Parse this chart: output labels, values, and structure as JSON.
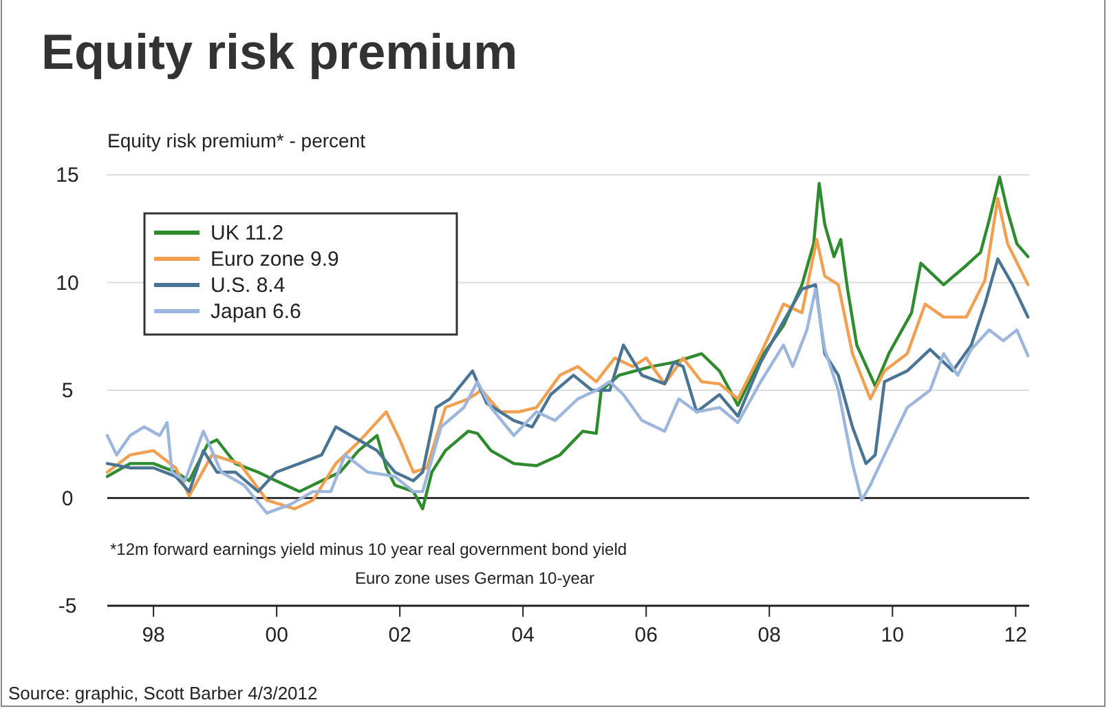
{
  "chart_data": {
    "type": "line",
    "title": "Equity risk premium",
    "ylabel": "Equity risk premium* - percent",
    "annotations": [
      "*12m forward earnings yield minus 10 year real government bond yield",
      "Euro zone uses German 10-year",
      "Source: graphic, Scott Barber 4/3/2012"
    ],
    "xlim": [
      1997.25,
      2012.22
    ],
    "ylim": [
      -5,
      15
    ],
    "xticks": [
      {
        "value": 1998,
        "label": "98"
      },
      {
        "value": 2000,
        "label": "00"
      },
      {
        "value": 2002,
        "label": "02"
      },
      {
        "value": 2004,
        "label": "04"
      },
      {
        "value": 2006,
        "label": "06"
      },
      {
        "value": 2008,
        "label": "08"
      },
      {
        "value": 2010,
        "label": "10"
      },
      {
        "value": 2012,
        "label": "12"
      }
    ],
    "yticks": [
      -5,
      0,
      5,
      10,
      15
    ],
    "grid": "y",
    "legend": "top left",
    "ref_lines": [
      {
        "axis": "y",
        "value": 0,
        "color": "#333333"
      }
    ],
    "series": [
      {
        "name": "UK 11.2",
        "color": "#2e8b2e",
        "x": [
          1997.25,
          1997.62,
          1998.0,
          1998.36,
          1998.58,
          1998.88,
          1999.03,
          1999.33,
          1999.7,
          1999.99,
          2000.37,
          2000.73,
          2001.03,
          2001.33,
          2001.63,
          2001.78,
          2001.92,
          2002.22,
          2002.37,
          2002.52,
          2002.74,
          2003.11,
          2003.26,
          2003.48,
          2003.85,
          2004.22,
          2004.6,
          2004.97,
          2005.19,
          2005.27,
          2005.56,
          2006.08,
          2006.45,
          2006.9,
          2007.19,
          2007.49,
          2007.86,
          2008.23,
          2008.53,
          2008.72,
          2008.81,
          2008.9,
          2009.05,
          2009.16,
          2009.27,
          2009.42,
          2009.72,
          2009.94,
          2010.31,
          2010.46,
          2010.83,
          2011.2,
          2011.43,
          2011.57,
          2011.74,
          2011.87,
          2012.02,
          2012.2
        ],
        "values": [
          1.0,
          1.6,
          1.6,
          1.2,
          0.8,
          2.5,
          2.7,
          1.6,
          1.2,
          0.8,
          0.3,
          0.8,
          1.2,
          2.2,
          2.9,
          1.4,
          0.6,
          0.3,
          -0.5,
          1.2,
          2.2,
          3.1,
          3.0,
          2.2,
          1.6,
          1.5,
          2.0,
          3.1,
          3.0,
          5.0,
          5.7,
          6.1,
          6.3,
          6.7,
          5.9,
          4.3,
          6.5,
          8.0,
          9.9,
          11.8,
          14.6,
          12.7,
          11.2,
          12.0,
          9.7,
          7.1,
          5.2,
          6.7,
          8.6,
          10.9,
          9.9,
          10.8,
          11.4,
          12.9,
          14.9,
          13.3,
          11.8,
          11.2
        ]
      },
      {
        "name": "Euro zone 9.9",
        "color": "#f0a050",
        "x": [
          1997.25,
          1997.62,
          1998.0,
          1998.36,
          1998.58,
          1998.95,
          1999.4,
          1999.84,
          2000.29,
          2000.59,
          2000.96,
          2001.33,
          2001.78,
          2002.0,
          2002.22,
          2002.44,
          2002.74,
          2003.11,
          2003.33,
          2003.63,
          2003.93,
          2004.22,
          2004.6,
          2004.89,
          2005.19,
          2005.49,
          2005.78,
          2006.0,
          2006.3,
          2006.6,
          2006.9,
          2007.19,
          2007.49,
          2007.86,
          2008.23,
          2008.53,
          2008.77,
          2008.9,
          2009.12,
          2009.35,
          2009.64,
          2009.87,
          2010.24,
          2010.53,
          2010.83,
          2011.2,
          2011.5,
          2011.71,
          2011.87,
          2012.2
        ],
        "values": [
          1.2,
          2.0,
          2.2,
          1.4,
          0.1,
          2.0,
          1.6,
          -0.1,
          -0.5,
          -0.1,
          1.6,
          2.6,
          4.0,
          2.7,
          1.2,
          1.4,
          4.2,
          4.6,
          5.0,
          4.0,
          4.0,
          4.2,
          5.7,
          6.1,
          5.4,
          6.5,
          6.1,
          6.5,
          5.3,
          6.5,
          5.4,
          5.3,
          4.6,
          6.7,
          9.0,
          8.6,
          12.0,
          10.3,
          9.9,
          6.7,
          4.6,
          5.9,
          6.7,
          9.0,
          8.4,
          8.4,
          10.1,
          13.9,
          11.8,
          9.9
        ]
      },
      {
        "name": "U.S. 8.4",
        "color": "#4a7494",
        "x": [
          1997.25,
          1997.62,
          1998.0,
          1998.36,
          1998.58,
          1998.81,
          1999.03,
          1999.33,
          1999.7,
          1999.99,
          2000.37,
          2000.73,
          2000.96,
          2001.33,
          2001.63,
          2001.92,
          2002.22,
          2002.37,
          2002.59,
          2002.81,
          2003.18,
          2003.41,
          2003.85,
          2004.15,
          2004.45,
          2004.82,
          2005.12,
          2005.41,
          2005.63,
          2005.93,
          2006.3,
          2006.45,
          2006.6,
          2006.82,
          2007.19,
          2007.49,
          2007.86,
          2008.23,
          2008.53,
          2008.75,
          2008.9,
          2009.12,
          2009.35,
          2009.57,
          2009.72,
          2009.87,
          2010.24,
          2010.61,
          2010.98,
          2011.28,
          2011.5,
          2011.71,
          2011.95,
          2012.2
        ],
        "values": [
          1.6,
          1.4,
          1.4,
          1.0,
          0.3,
          2.2,
          1.2,
          1.2,
          0.3,
          1.2,
          1.6,
          2.0,
          3.3,
          2.7,
          2.2,
          1.2,
          0.8,
          1.2,
          4.2,
          4.6,
          5.9,
          4.4,
          3.6,
          3.3,
          4.8,
          5.7,
          5.0,
          5.0,
          7.1,
          5.7,
          5.3,
          6.3,
          6.1,
          4.0,
          4.8,
          3.8,
          6.3,
          8.2,
          9.7,
          9.9,
          6.7,
          5.7,
          3.3,
          1.6,
          2.0,
          5.4,
          5.9,
          6.9,
          5.9,
          7.1,
          9.0,
          11.1,
          9.9,
          8.4
        ]
      },
      {
        "name": "Japan 6.6",
        "color": "#9db6de",
        "x": [
          1997.25,
          1997.4,
          1997.62,
          1997.85,
          1998.1,
          1998.22,
          1998.3,
          1998.51,
          1998.81,
          1999.1,
          1999.47,
          1999.84,
          2000.22,
          2000.59,
          2000.88,
          2001.11,
          2001.48,
          2001.92,
          2002.22,
          2002.37,
          2002.67,
          2003.04,
          2003.26,
          2003.48,
          2003.85,
          2004.22,
          2004.52,
          2004.89,
          2005.19,
          2005.41,
          2005.63,
          2005.93,
          2006.3,
          2006.53,
          2006.82,
          2007.19,
          2007.49,
          2007.86,
          2008.23,
          2008.38,
          2008.61,
          2008.75,
          2008.9,
          2009.12,
          2009.35,
          2009.5,
          2009.64,
          2009.87,
          2010.24,
          2010.61,
          2010.83,
          2011.06,
          2011.28,
          2011.57,
          2011.8,
          2012.02,
          2012.2
        ],
        "values": [
          2.9,
          2.0,
          2.9,
          3.3,
          2.9,
          3.5,
          1.2,
          0.8,
          3.1,
          1.2,
          0.6,
          -0.7,
          -0.3,
          0.3,
          0.3,
          2.0,
          1.2,
          1.0,
          0.3,
          0.3,
          3.3,
          4.2,
          5.4,
          4.2,
          2.9,
          4.0,
          3.6,
          4.6,
          5.0,
          5.4,
          4.8,
          3.6,
          3.1,
          4.6,
          4.0,
          4.2,
          3.5,
          5.4,
          7.1,
          6.1,
          7.8,
          9.7,
          6.9,
          5.0,
          1.6,
          -0.1,
          0.6,
          2.0,
          4.2,
          5.0,
          6.7,
          5.7,
          6.9,
          7.8,
          7.3,
          7.8,
          6.6
        ]
      }
    ]
  }
}
